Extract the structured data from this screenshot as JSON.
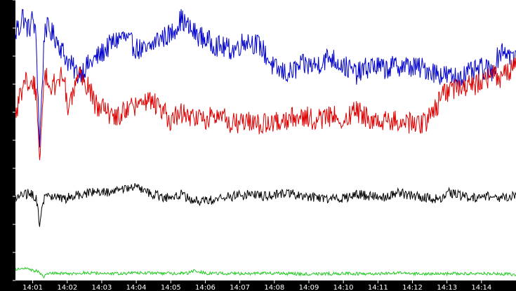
{
  "chart_data": {
    "type": "line",
    "x": [
      "14:01",
      "14:02",
      "14:03",
      "14:04",
      "14:05",
      "14:06",
      "14:07",
      "14:08",
      "14:09",
      "14:10",
      "14:11",
      "14:12",
      "14:13",
      "14:14"
    ],
    "y_ticks": [
      "0",
      "1630",
      "3260",
      "4890",
      "6520",
      "8151",
      "9781",
      "11411",
      "13041",
      "14671",
      "16302"
    ],
    "ylim": [
      0,
      16302
    ],
    "xlim_minutes": [
      0.5,
      15.0
    ],
    "grid": false,
    "legend": "none",
    "background": "#ffffff",
    "axis_bar_color": "#000000",
    "series": [
      {
        "color": "#0000cc",
        "t": [
          0.5,
          0.55,
          0.6,
          0.7,
          0.8,
          0.9,
          1.0,
          1.1,
          1.2,
          1.35,
          1.5,
          1.7,
          2.0,
          2.3,
          2.6,
          3.0,
          3.3,
          3.6,
          4.0,
          4.3,
          4.6,
          5.0,
          5.3,
          5.6,
          6.0,
          6.4,
          6.8,
          7.2,
          7.6,
          8.0,
          8.4,
          8.8,
          9.2,
          9.6,
          10.0,
          10.4,
          10.8,
          11.2,
          11.6,
          12.0,
          12.4,
          12.8,
          13.2,
          13.6,
          14.0,
          14.3,
          14.6,
          15.0
        ],
        "v": [
          14000,
          15000,
          14500,
          15500,
          14800,
          14600,
          15300,
          14000,
          8000,
          14800,
          14500,
          14000,
          12800,
          12000,
          12500,
          13200,
          13800,
          14200,
          13500,
          13300,
          14000,
          14300,
          15200,
          14500,
          14000,
          13600,
          13400,
          14000,
          13600,
          12300,
          12000,
          12500,
          12500,
          13000,
          12500,
          12000,
          12500,
          12300,
          12500,
          12400,
          12300,
          12000,
          11800,
          12000,
          12300,
          12200,
          13500,
          12800
        ]
      },
      {
        "color": "#dd0000",
        "t": [
          0.5,
          0.6,
          0.7,
          0.8,
          0.9,
          1.0,
          1.1,
          1.2,
          1.35,
          1.5,
          1.7,
          1.9,
          2.0,
          2.2,
          2.4,
          2.6,
          2.8,
          3.0,
          3.3,
          3.6,
          4.0,
          4.3,
          4.6,
          5.0,
          5.3,
          5.6,
          6.0,
          6.4,
          6.8,
          7.2,
          7.6,
          8.0,
          8.4,
          8.8,
          9.2,
          9.6,
          10.0,
          10.4,
          10.8,
          11.2,
          11.6,
          12.0,
          12.4,
          12.8,
          13.0,
          13.3,
          13.6,
          14.0,
          14.3,
          14.6,
          15.0
        ],
        "v": [
          9700,
          10500,
          11000,
          11700,
          10800,
          11500,
          11000,
          6800,
          12000,
          11200,
          11500,
          12000,
          10000,
          11000,
          12000,
          11300,
          10300,
          10000,
          9500,
          9700,
          10200,
          10500,
          10200,
          9300,
          9700,
          9500,
          9400,
          9600,
          9100,
          9300,
          9000,
          9200,
          9400,
          9600,
          9300,
          9500,
          9500,
          9800,
          9400,
          9200,
          9300,
          9100,
          9200,
          10500,
          11000,
          11200,
          11300,
          11500,
          12000,
          11800,
          12700
        ]
      },
      {
        "color": "#000000",
        "t": [
          0.5,
          0.7,
          0.9,
          1.1,
          1.2,
          1.3,
          1.5,
          1.7,
          1.9,
          2.1,
          2.5,
          2.9,
          3.3,
          3.7,
          4.0,
          4.3,
          4.6,
          4.8,
          5.0,
          5.3,
          5.6,
          6.0,
          6.4,
          6.8,
          7.2,
          7.6,
          8.0,
          8.4,
          8.8,
          9.2,
          9.6,
          10.0,
          10.4,
          10.8,
          11.2,
          11.6,
          12.0,
          12.4,
          12.8,
          13.0,
          13.4,
          13.8,
          14.2,
          14.6,
          15.0
        ],
        "v": [
          4800,
          4900,
          5100,
          4800,
          3400,
          4700,
          4900,
          4800,
          4700,
          4900,
          5000,
          5200,
          5100,
          5300,
          5400,
          5100,
          5000,
          4700,
          4900,
          5000,
          4700,
          4600,
          4800,
          4900,
          5000,
          4900,
          5000,
          5100,
          4900,
          4800,
          4700,
          4800,
          5000,
          4900,
          4800,
          5100,
          4900,
          4800,
          4700,
          5200,
          4900,
          4800,
          4900,
          4800,
          5000
        ]
      },
      {
        "color": "#22cc22",
        "t": [
          0.5,
          0.8,
          1.0,
          1.2,
          1.3,
          1.5,
          2.0,
          2.5,
          3.0,
          3.5,
          4.0,
          4.5,
          5.0,
          5.5,
          5.7,
          6.0,
          7.0,
          8.0,
          9.0,
          10.0,
          11.0,
          11.5,
          12.0,
          13.0,
          14.0,
          14.5,
          15.0
        ],
        "v": [
          650,
          750,
          600,
          500,
          200,
          450,
          400,
          450,
          420,
          400,
          450,
          420,
          400,
          430,
          600,
          420,
          400,
          420,
          380,
          400,
          390,
          450,
          400,
          390,
          410,
          380,
          350
        ]
      }
    ]
  }
}
